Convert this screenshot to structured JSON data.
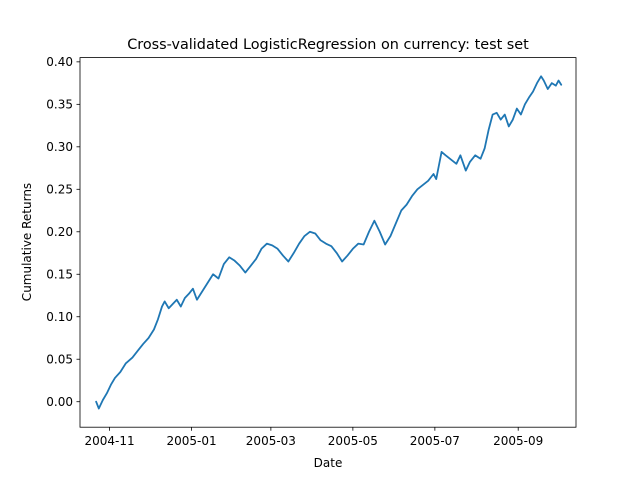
{
  "chart_data": {
    "type": "line",
    "title": "Cross-validated LogisticRegression on currency: test set",
    "xlabel": "Date",
    "ylabel": "Cumulative Returns",
    "xlim": [
      "2004-10-10",
      "2005-10-14"
    ],
    "ylim": [
      -0.03,
      0.405
    ],
    "x_ticks": [
      "2004-11-01",
      "2005-01-01",
      "2005-03-01",
      "2005-05-01",
      "2005-07-01",
      "2005-09-01"
    ],
    "x_tick_labels": [
      "2004-11",
      "2005-01",
      "2005-03",
      "2005-05",
      "2005-07",
      "2005-09"
    ],
    "y_ticks": [
      0.0,
      0.05,
      0.1,
      0.15,
      0.2,
      0.25,
      0.3,
      0.35,
      0.4
    ],
    "y_tick_labels": [
      "0.00",
      "0.05",
      "0.10",
      "0.15",
      "0.20",
      "0.25",
      "0.30",
      "0.35",
      "0.40"
    ],
    "grid": false,
    "legend": "none",
    "series": [
      {
        "color": "#1f77b4",
        "points": [
          [
            "2004-10-22",
            0.0
          ],
          [
            "2004-10-24",
            -0.008
          ],
          [
            "2004-10-27",
            0.002
          ],
          [
            "2004-10-30",
            0.01
          ],
          [
            "2004-11-02",
            0.02
          ],
          [
            "2004-11-05",
            0.028
          ],
          [
            "2004-11-09",
            0.035
          ],
          [
            "2004-11-13",
            0.045
          ],
          [
            "2004-11-18",
            0.052
          ],
          [
            "2004-11-22",
            0.06
          ],
          [
            "2004-11-26",
            0.068
          ],
          [
            "2004-11-30",
            0.075
          ],
          [
            "2004-12-04",
            0.085
          ],
          [
            "2004-12-07",
            0.097
          ],
          [
            "2004-12-10",
            0.112
          ],
          [
            "2004-12-12",
            0.118
          ],
          [
            "2004-12-15",
            0.11
          ],
          [
            "2004-12-18",
            0.115
          ],
          [
            "2004-12-21",
            0.12
          ],
          [
            "2004-12-24",
            0.112
          ],
          [
            "2004-12-27",
            0.122
          ],
          [
            "2004-12-30",
            0.127
          ],
          [
            "2005-01-02",
            0.133
          ],
          [
            "2005-01-05",
            0.12
          ],
          [
            "2005-01-09",
            0.13
          ],
          [
            "2005-01-13",
            0.14
          ],
          [
            "2005-01-17",
            0.15
          ],
          [
            "2005-01-21",
            0.145
          ],
          [
            "2005-01-25",
            0.162
          ],
          [
            "2005-01-29",
            0.17
          ],
          [
            "2005-02-02",
            0.166
          ],
          [
            "2005-02-06",
            0.16
          ],
          [
            "2005-02-10",
            0.152
          ],
          [
            "2005-02-14",
            0.16
          ],
          [
            "2005-02-18",
            0.168
          ],
          [
            "2005-02-22",
            0.18
          ],
          [
            "2005-02-26",
            0.186
          ],
          [
            "2005-03-02",
            0.184
          ],
          [
            "2005-03-06",
            0.18
          ],
          [
            "2005-03-10",
            0.172
          ],
          [
            "2005-03-14",
            0.165
          ],
          [
            "2005-03-18",
            0.175
          ],
          [
            "2005-03-22",
            0.186
          ],
          [
            "2005-03-26",
            0.195
          ],
          [
            "2005-03-30",
            0.2
          ],
          [
            "2005-04-03",
            0.198
          ],
          [
            "2005-04-07",
            0.19
          ],
          [
            "2005-04-11",
            0.186
          ],
          [
            "2005-04-15",
            0.183
          ],
          [
            "2005-04-19",
            0.175
          ],
          [
            "2005-04-23",
            0.165
          ],
          [
            "2005-04-27",
            0.172
          ],
          [
            "2005-05-01",
            0.18
          ],
          [
            "2005-05-05",
            0.186
          ],
          [
            "2005-05-09",
            0.185
          ],
          [
            "2005-05-13",
            0.2
          ],
          [
            "2005-05-17",
            0.213
          ],
          [
            "2005-05-21",
            0.2
          ],
          [
            "2005-05-25",
            0.185
          ],
          [
            "2005-05-29",
            0.195
          ],
          [
            "2005-06-02",
            0.21
          ],
          [
            "2005-06-06",
            0.225
          ],
          [
            "2005-06-10",
            0.232
          ],
          [
            "2005-06-14",
            0.242
          ],
          [
            "2005-06-18",
            0.25
          ],
          [
            "2005-06-22",
            0.255
          ],
          [
            "2005-06-26",
            0.26
          ],
          [
            "2005-06-30",
            0.268
          ],
          [
            "2005-07-02",
            0.262
          ],
          [
            "2005-07-04",
            0.278
          ],
          [
            "2005-07-06",
            0.294
          ],
          [
            "2005-07-09",
            0.29
          ],
          [
            "2005-07-13",
            0.285
          ],
          [
            "2005-07-17",
            0.28
          ],
          [
            "2005-07-20",
            0.29
          ],
          [
            "2005-07-24",
            0.272
          ],
          [
            "2005-07-27",
            0.282
          ],
          [
            "2005-07-31",
            0.29
          ],
          [
            "2005-08-04",
            0.286
          ],
          [
            "2005-08-07",
            0.298
          ],
          [
            "2005-08-10",
            0.32
          ],
          [
            "2005-08-13",
            0.338
          ],
          [
            "2005-08-16",
            0.34
          ],
          [
            "2005-08-19",
            0.332
          ],
          [
            "2005-08-22",
            0.338
          ],
          [
            "2005-08-25",
            0.324
          ],
          [
            "2005-08-28",
            0.332
          ],
          [
            "2005-08-31",
            0.345
          ],
          [
            "2005-09-03",
            0.338
          ],
          [
            "2005-09-06",
            0.35
          ],
          [
            "2005-09-09",
            0.358
          ],
          [
            "2005-09-12",
            0.365
          ],
          [
            "2005-09-15",
            0.375
          ],
          [
            "2005-09-18",
            0.383
          ],
          [
            "2005-09-20",
            0.378
          ],
          [
            "2005-09-23",
            0.368
          ],
          [
            "2005-09-26",
            0.375
          ],
          [
            "2005-09-29",
            0.372
          ],
          [
            "2005-10-01",
            0.378
          ],
          [
            "2005-10-03",
            0.373
          ]
        ]
      }
    ]
  }
}
